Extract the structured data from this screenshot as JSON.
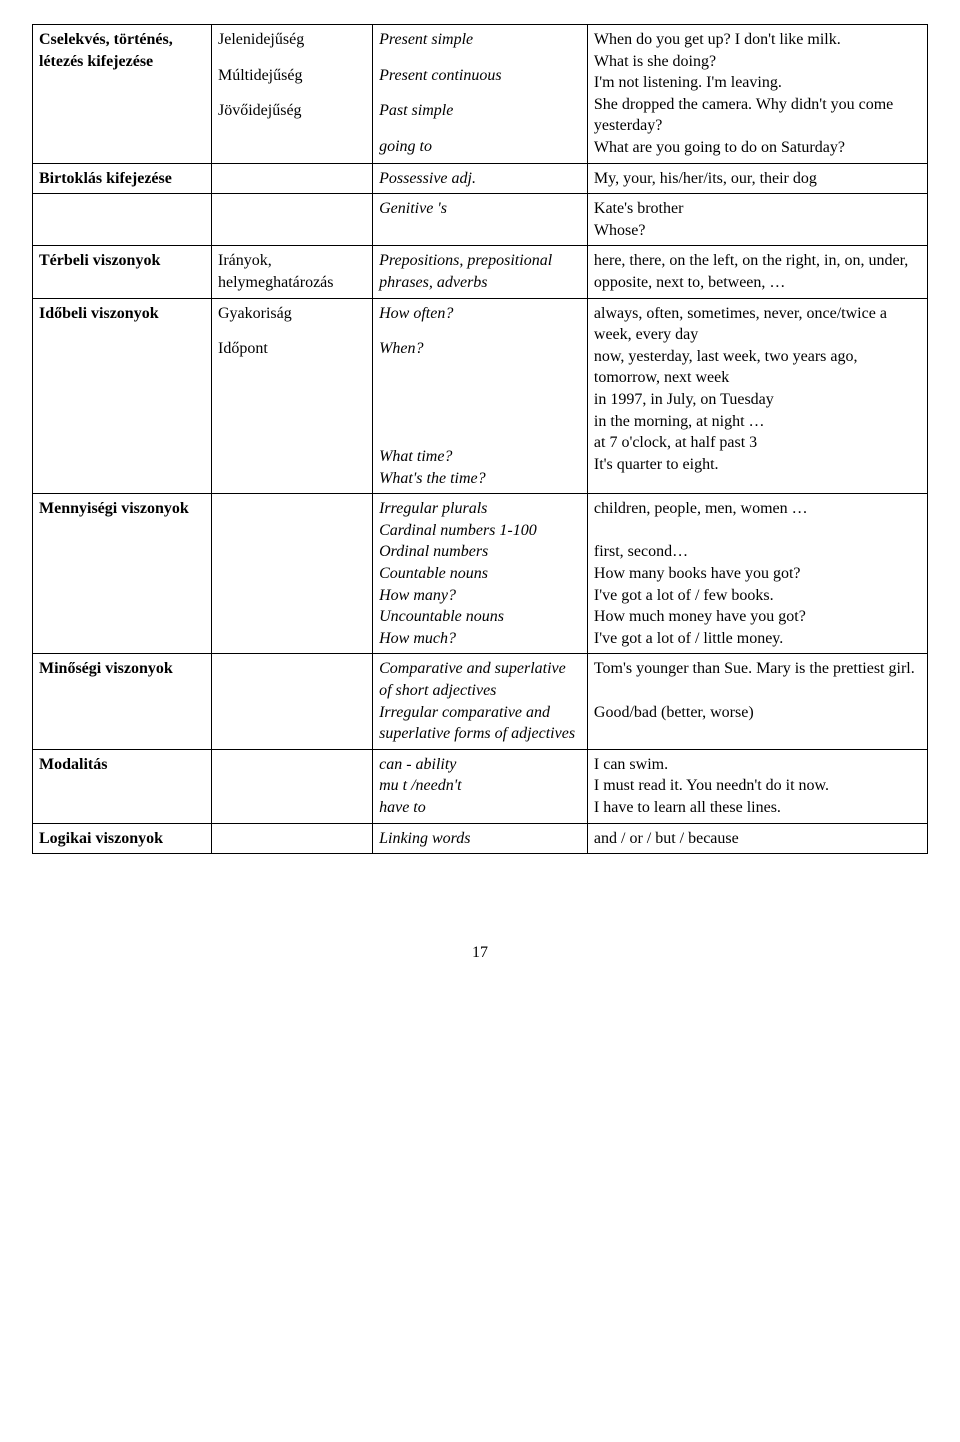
{
  "page_number": "17",
  "rows": [
    {
      "c1": [
        {
          "text": "Cselekvés, történés, létezés kifejezése",
          "bold": true
        }
      ],
      "c2": [
        {
          "text": "Jelenidejűség"
        },
        {
          "text": "Múltidejűség"
        },
        {
          "text": "Jövőidejűség"
        }
      ],
      "c3": [
        {
          "text": "Present simple",
          "ital": true
        },
        {
          "text": "Present continuous",
          "ital": true
        },
        {
          "text": "Past simple",
          "ital": true
        },
        {
          "text": "going to",
          "ital": true
        }
      ],
      "c4": [
        {
          "text": "When do you get up? I don't like milk.\nWhat is she doing?\nI'm not listening. I'm leaving.\nShe dropped the camera. Why didn't you come yesterday?\nWhat are you going to do on Saturday?"
        }
      ]
    },
    {
      "c1": [
        {
          "text": "Birtoklás kifejezése",
          "bold": true
        }
      ],
      "c2": [
        {
          "text": ""
        }
      ],
      "c3": [
        {
          "text": "Possessive adj.",
          "ital": true
        }
      ],
      "c4": [
        {
          "text": "My, your, his/her/its, our, their dog"
        }
      ]
    },
    {
      "c1": [
        {
          "text": ""
        }
      ],
      "c2": [
        {
          "text": ""
        }
      ],
      "c3": [
        {
          "text": "Genitive 's",
          "ital": true
        }
      ],
      "c4": [
        {
          "text": "Kate's brother\nWhose?"
        }
      ]
    },
    {
      "c1": [
        {
          "text": "Térbeli viszonyok",
          "bold": true
        }
      ],
      "c2": [
        {
          "text": "Irányok, helymeghatározás"
        }
      ],
      "c3": [
        {
          "text": "Prepositions, prepositional phrases, adverbs",
          "ital": true
        }
      ],
      "c4": [
        {
          "text": "here, there, on the left, on the right, in, on, under, opposite, next to, between, …"
        }
      ]
    },
    {
      "c1": [
        {
          "text": "Időbeli viszonyok",
          "bold": true
        }
      ],
      "c2": [
        {
          "text": "Gyakoriság"
        },
        {
          "text": "Időpont"
        }
      ],
      "c3": [
        {
          "text": "How often?",
          "ital": true
        },
        {
          "text": "When?\n\n\n\n\nWhat time?\nWhat's the time?",
          "ital": true
        }
      ],
      "c4": [
        {
          "text": "always, often, sometimes, never, once/twice a week, every day\nnow, yesterday, last week, two years ago,\ntomorrow, next week\nin 1997, in July, on Tuesday\nin the morning, at night …\nat 7 o'clock, at half past 3\nIt's quarter to eight."
        }
      ]
    },
    {
      "c1": [
        {
          "text": "Mennyiségi viszonyok",
          "bold": true
        }
      ],
      "c2": [
        {
          "text": ""
        }
      ],
      "c3": [
        {
          "text": "Irregular plurals\nCardinal numbers 1-100\nOrdinal numbers\nCountable nouns\nHow many?\nUncountable nouns\nHow much?",
          "ital": true
        }
      ],
      "c4": [
        {
          "text": "children, people, men, women …\n\nfirst, second…\nHow many books have you got?\nI've got a lot of / few books.\nHow much money have you got?\nI've got a lot of / little money."
        }
      ]
    },
    {
      "c1": [
        {
          "text": "Minőségi viszonyok",
          "bold": true
        }
      ],
      "c2": [
        {
          "text": ""
        }
      ],
      "c3": [
        {
          "text": "Comparative and superlative of short adjectives\nIrregular comparative and superlative forms of adjectives",
          "ital": true
        }
      ],
      "c4": [
        {
          "text": "Tom's younger than Sue. Mary is the prettiest girl.\n\nGood/bad (better, worse)"
        }
      ]
    },
    {
      "c1": [
        {
          "text": "Modalitás",
          "bold": true
        }
      ],
      "c2": [
        {
          "text": ""
        }
      ],
      "c3": [
        {
          "text": "can - ability\nmu t /needn't\nhave to",
          "ital": true
        }
      ],
      "c4": [
        {
          "text": "I can swim.\nI must read it. You needn't do it now.\nI have to learn all these lines."
        }
      ]
    },
    {
      "c1": [
        {
          "text": "Logikai viszonyok",
          "bold": true
        }
      ],
      "c2": [
        {
          "text": ""
        }
      ],
      "c3": [
        {
          "text": "Linking words",
          "ital": true
        }
      ],
      "c4": [
        {
          "text": "and / or / but / because"
        }
      ]
    }
  ]
}
